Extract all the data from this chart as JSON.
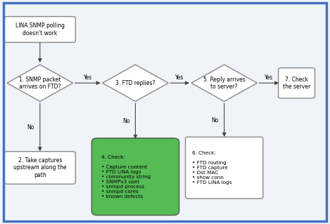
{
  "bg_color": "#f0f4f8",
  "border_color": "#4472c4",
  "start_text": "LINA SNMP polling\ndoesn't work",
  "d1_text": "1. SNMP packet\narrives on FTD?",
  "d3_text": "3. FTD replies?",
  "d5_text": "5. Reply arrives\nto server?",
  "b2_text": "2. Take captures\nupstream along the\npath",
  "b4_text": "4. Check:\n\n• Capture content\n• FTD LINA logs\n• community string\n• SNMPv3 user\n• snmpd process\n• snmpd cores\n• known defects",
  "b6_text": "6. Check:\n\n• FTD routing\n• FTD capture\n• Dst MAC\n• show conn\n• FTD LINA logs",
  "b7_text": "7. Check\nthe server",
  "fill_white": "#ffffff",
  "fill_green": "#55bb55",
  "edge_gray": "#888888",
  "edge_dark": "#555555",
  "arrow_color": "#444444",
  "yes_label": "Yes",
  "no_label": "No"
}
